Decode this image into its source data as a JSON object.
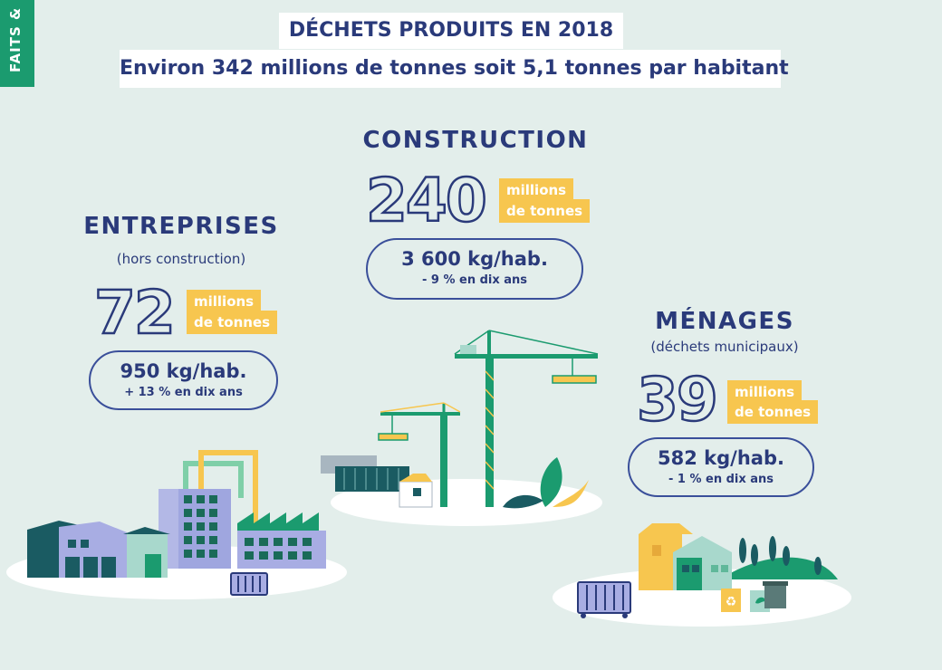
{
  "side_tab": "FAITS &",
  "title": "DÉCHETS PRODUITS EN 2018",
  "subtitle": "Environ 342 millions de tonnes soit 5,1 tonnes par habitant",
  "construction": {
    "name": "CONSTRUCTION",
    "value": "240",
    "unit_line1": "millions",
    "unit_line2": "de tonnes",
    "per_capita": "3 600 kg/hab.",
    "evolution": "- 9  % en dix ans"
  },
  "entreprises": {
    "name": "ENTREPRISES",
    "note": "(hors construction)",
    "value": "72",
    "unit_line1": "millions",
    "unit_line2": "de tonnes",
    "per_capita": "950 kg/hab.",
    "evolution": "+ 13  % en dix ans"
  },
  "menages": {
    "name": "MÉNAGES",
    "note": "(déchets municipaux)",
    "value": "39",
    "unit_line1": "millions",
    "unit_line2": "de tonnes",
    "per_capita": "582 kg/hab.",
    "evolution": "- 1  % en dix ans"
  },
  "colors": {
    "background": "#e3eeeb",
    "navy": "#2a3a7a",
    "green": "#1b9b6f",
    "yellow": "#f7c64f"
  }
}
